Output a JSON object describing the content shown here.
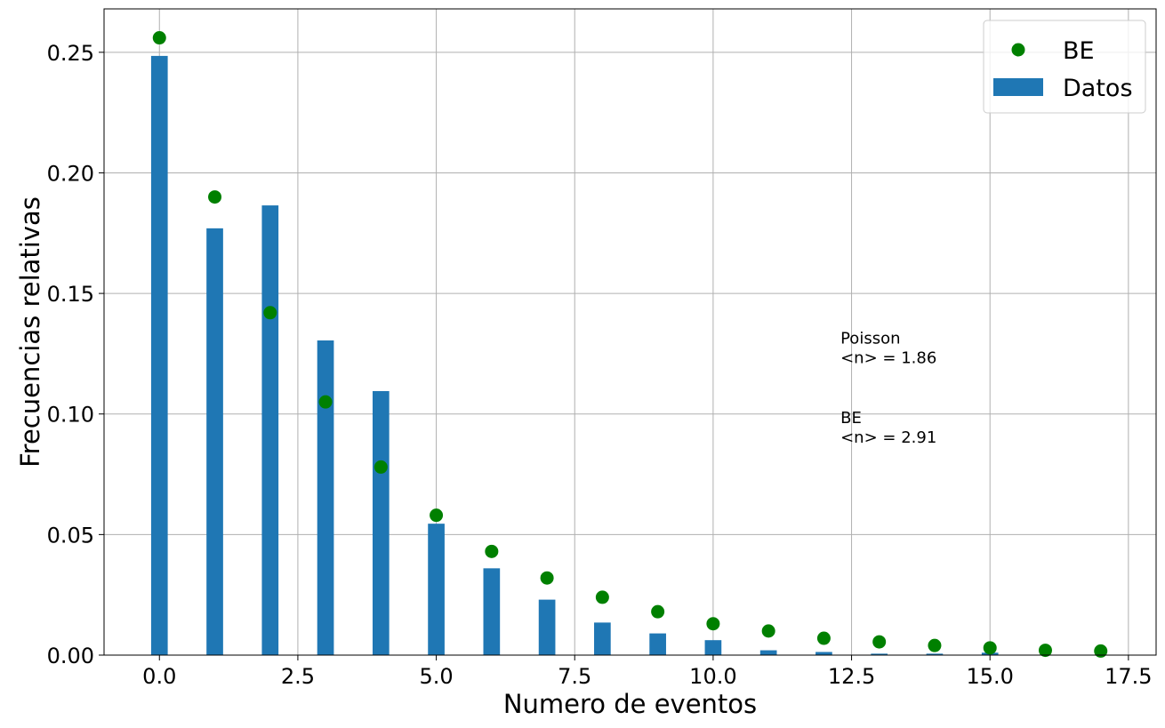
{
  "chart_data": {
    "type": "bar",
    "title": "",
    "xlabel": "Numero de eventos",
    "ylabel": "Frecuencias relativas",
    "xlim": [
      -1.0,
      18.0
    ],
    "ylim": [
      0.0,
      0.268
    ],
    "xticks": [
      "0.0",
      "2.5",
      "5.0",
      "7.5",
      "10.0",
      "12.5",
      "15.0",
      "17.5"
    ],
    "yticks": [
      "0.00",
      "0.05",
      "0.10",
      "0.15",
      "0.20",
      "0.25"
    ],
    "grid": true,
    "legend_position": "top-right",
    "series": [
      {
        "name": "Datos",
        "type": "bar",
        "color": "#1f77b4",
        "x": [
          0,
          1,
          2,
          3,
          4,
          5,
          6,
          7,
          8,
          9,
          10,
          11,
          12,
          13,
          14,
          15
        ],
        "values": [
          0.2485,
          0.177,
          0.1865,
          0.1305,
          0.1095,
          0.0545,
          0.036,
          0.023,
          0.0135,
          0.009,
          0.0062,
          0.002,
          0.0013,
          0.0006,
          0.0006,
          0.001
        ]
      },
      {
        "name": "BE",
        "type": "scatter",
        "color": "#008000",
        "x": [
          0,
          1,
          2,
          3,
          4,
          5,
          6,
          7,
          8,
          9,
          10,
          11,
          12,
          13,
          14,
          15,
          16,
          17
        ],
        "values": [
          0.256,
          0.19,
          0.142,
          0.105,
          0.078,
          0.058,
          0.043,
          0.032,
          0.024,
          0.018,
          0.013,
          0.01,
          0.007,
          0.0055,
          0.004,
          0.003,
          0.002,
          0.0017
        ]
      }
    ],
    "annotations": [
      {
        "lines": [
          "Poisson",
          "<n> = 1.86"
        ],
        "x": 12.3,
        "y": 0.124
      },
      {
        "lines": [
          "BE",
          "<n> = 2.91"
        ],
        "x": 12.3,
        "y": 0.091
      }
    ]
  }
}
